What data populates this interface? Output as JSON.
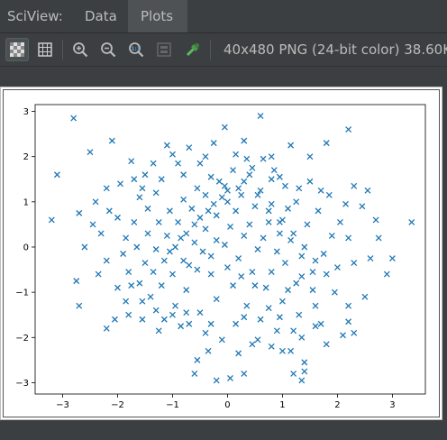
{
  "window": {
    "title": "SciView:",
    "tabs": [
      {
        "label": "Data",
        "active": false
      },
      {
        "label": "Plots",
        "active": true
      }
    ]
  },
  "toolbar": {
    "buttons": [
      {
        "icon": "checkerboard-icon",
        "active": true
      },
      {
        "icon": "grid-icon",
        "active": false
      },
      {
        "icon": "zoom-in-icon",
        "active": false
      },
      {
        "icon": "zoom-out-icon",
        "active": false
      },
      {
        "icon": "actual-size-icon",
        "active": false
      },
      {
        "icon": "fit-to-window-icon",
        "active": false
      },
      {
        "icon": "color-picker-icon",
        "active": false
      }
    ],
    "image_info": "40x480 PNG (24-bit color) 38.60K"
  },
  "colors": {
    "marker": "#1f77b4",
    "panel": "#3c3f41",
    "active_tab": "#4e5254"
  },
  "chart_data": {
    "type": "scatter",
    "marker": "x",
    "xlim": [
      -3.5,
      3.6
    ],
    "ylim": [
      -3.25,
      3.15
    ],
    "xticks": [
      "−3",
      "−2",
      "−1",
      "0",
      "1",
      "2",
      "3"
    ],
    "yticks": [
      "3",
      "2",
      "1",
      "0",
      "−1",
      "−2",
      "−3"
    ],
    "xtick_values": [
      -3,
      -2,
      -1,
      0,
      1,
      2,
      3
    ],
    "ytick_values": [
      3,
      2,
      1,
      0,
      -1,
      -2,
      -3
    ],
    "title": "",
    "xlabel": "",
    "ylabel": "",
    "points": [
      [
        -2.8,
        2.85
      ],
      [
        -3.1,
        1.6
      ],
      [
        -2.5,
        2.1
      ],
      [
        -2.1,
        2.35
      ],
      [
        -3.2,
        0.6
      ],
      [
        -2.6,
        0.0
      ],
      [
        -2.7,
        0.75
      ],
      [
        -2.75,
        -0.75
      ],
      [
        -2.7,
        -1.3
      ],
      [
        -2.2,
        1.3
      ],
      [
        -2.15,
        0.8
      ],
      [
        -2.3,
        0.3
      ],
      [
        -2.2,
        -0.3
      ],
      [
        -2.2,
        -1.8
      ],
      [
        -2.05,
        -1.6
      ],
      [
        -1.8,
        -1.5
      ],
      [
        -1.3,
        -1.4
      ],
      [
        -1.0,
        -1.5
      ],
      [
        -0.7,
        -1.7
      ],
      [
        -0.4,
        -1.9
      ],
      [
        -0.55,
        -2.5
      ],
      [
        -0.6,
        -2.8
      ],
      [
        -0.35,
        -2.3
      ],
      [
        -0.2,
        -2.95
      ],
      [
        0.05,
        -2.9
      ],
      [
        0.3,
        -2.8
      ],
      [
        0.2,
        -2.35
      ],
      [
        0.55,
        -2.05
      ],
      [
        0.8,
        -2.2
      ],
      [
        1.0,
        -2.3
      ],
      [
        1.15,
        -2.3
      ],
      [
        1.2,
        -1.85
      ],
      [
        1.35,
        -2.0
      ],
      [
        1.4,
        -2.55
      ],
      [
        1.4,
        -2.75
      ],
      [
        1.35,
        -2.95
      ],
      [
        1.2,
        -2.8
      ],
      [
        1.8,
        -2.15
      ],
      [
        1.7,
        -1.7
      ],
      [
        2.1,
        -1.95
      ],
      [
        2.3,
        -1.9
      ],
      [
        2.2,
        -1.65
      ],
      [
        2.5,
        -1.1
      ],
      [
        2.3,
        -0.35
      ],
      [
        2.6,
        -0.25
      ],
      [
        2.9,
        -0.6
      ],
      [
        3.0,
        -0.25
      ],
      [
        2.75,
        0.2
      ],
      [
        3.35,
        0.55
      ],
      [
        2.7,
        0.6
      ],
      [
        2.55,
        1.25
      ],
      [
        2.3,
        1.35
      ],
      [
        2.2,
        2.6
      ],
      [
        1.8,
        2.3
      ],
      [
        1.5,
        2.0
      ],
      [
        1.15,
        2.25
      ],
      [
        0.8,
        2.0
      ],
      [
        0.6,
        2.9
      ],
      [
        0.3,
        2.35
      ],
      [
        -0.05,
        2.65
      ],
      [
        -0.25,
        2.3
      ],
      [
        -0.7,
        2.2
      ],
      [
        -1.1,
        2.25
      ],
      [
        -1.0,
        2.05
      ],
      [
        -1.7,
        1.5
      ],
      [
        -1.75,
        1.9
      ],
      [
        -1.5,
        1.6
      ],
      [
        -1.3,
        1.2
      ],
      [
        -1.6,
        1.1
      ],
      [
        -1.45,
        0.85
      ],
      [
        -1.7,
        0.55
      ],
      [
        -1.85,
        0.2
      ],
      [
        -1.9,
        -0.15
      ],
      [
        -1.8,
        -0.55
      ],
      [
        -1.6,
        -0.8
      ],
      [
        -1.4,
        -1.1
      ],
      [
        -1.2,
        -0.85
      ],
      [
        -1.0,
        -0.6
      ],
      [
        -0.8,
        -0.3
      ],
      [
        -0.6,
        0.1
      ],
      [
        -0.4,
        0.4
      ],
      [
        -0.2,
        0.7
      ],
      [
        0.0,
        1.0
      ],
      [
        0.2,
        1.3
      ],
      [
        0.4,
        1.6
      ],
      [
        0.6,
        1.25
      ],
      [
        0.8,
        0.95
      ],
      [
        1.0,
        0.6
      ],
      [
        1.2,
        0.3
      ],
      [
        1.4,
        0.0
      ],
      [
        1.6,
        -0.3
      ],
      [
        1.8,
        -0.6
      ],
      [
        1.95,
        -1.0
      ],
      [
        1.6,
        -1.3
      ],
      [
        1.3,
        -1.5
      ],
      [
        1.0,
        -1.2
      ],
      [
        0.7,
        -0.9
      ],
      [
        0.45,
        -0.55
      ],
      [
        0.2,
        -0.25
      ],
      [
        -0.05,
        0.05
      ],
      [
        -0.3,
        -0.2
      ],
      [
        -0.55,
        -0.5
      ],
      [
        -0.75,
        -0.95
      ],
      [
        -0.95,
        -1.3
      ],
      [
        -1.15,
        -1.6
      ],
      [
        -0.85,
        -1.75
      ],
      [
        -0.5,
        -1.45
      ],
      [
        -0.2,
        -1.15
      ],
      [
        0.1,
        -0.85
      ],
      [
        0.35,
        -1.3
      ],
      [
        0.6,
        -1.6
      ],
      [
        0.9,
        -1.85
      ],
      [
        0.15,
        -1.7
      ],
      [
        -0.1,
        -2.05
      ],
      [
        0.45,
        -2.15
      ],
      [
        0.75,
        -1.35
      ],
      [
        1.1,
        -0.95
      ],
      [
        1.35,
        -0.65
      ],
      [
        1.55,
        -0.95
      ],
      [
        1.75,
        -0.15
      ],
      [
        1.9,
        0.25
      ],
      [
        2.05,
        0.55
      ],
      [
        2.15,
        0.95
      ],
      [
        1.85,
        1.15
      ],
      [
        1.65,
        0.8
      ],
      [
        1.45,
        0.5
      ],
      [
        1.25,
        1.0
      ],
      [
        1.05,
        1.35
      ],
      [
        0.85,
        1.7
      ],
      [
        0.65,
        1.95
      ],
      [
        0.35,
        1.95
      ],
      [
        0.1,
        1.7
      ],
      [
        -0.15,
        1.45
      ],
      [
        -0.4,
        1.15
      ],
      [
        -0.65,
        0.85
      ],
      [
        -0.9,
        0.55
      ],
      [
        -1.1,
        0.25
      ],
      [
        -1.3,
        -0.05
      ],
      [
        -1.5,
        -0.35
      ],
      [
        -1.05,
        -0.1
      ],
      [
        -0.85,
        0.2
      ],
      [
        -0.6,
        0.5
      ],
      [
        -0.35,
        0.8
      ],
      [
        -0.1,
        1.1
      ],
      [
        0.15,
        0.8
      ],
      [
        0.4,
        0.5
      ],
      [
        0.65,
        0.2
      ],
      [
        0.9,
        -0.1
      ],
      [
        0.55,
        -0.05
      ],
      [
        0.3,
        0.25
      ],
      [
        0.05,
        0.45
      ],
      [
        -0.2,
        0.15
      ],
      [
        -0.45,
        -0.1
      ],
      [
        -0.7,
        -0.4
      ],
      [
        -0.3,
        -0.6
      ],
      [
        0.0,
        -0.45
      ],
      [
        0.25,
        -0.65
      ],
      [
        0.5,
        -0.85
      ],
      [
        0.8,
        -0.55
      ],
      [
        1.05,
        -0.35
      ],
      [
        1.25,
        -0.8
      ],
      [
        0.95,
        0.3
      ],
      [
        0.75,
        0.55
      ],
      [
        0.5,
        0.9
      ],
      [
        0.25,
        1.15
      ],
      [
        -0.05,
        1.35
      ],
      [
        -0.3,
        1.55
      ],
      [
        -0.55,
        1.3
      ],
      [
        -0.8,
        1.05
      ],
      [
        -1.05,
        0.8
      ],
      [
        -1.25,
        0.55
      ],
      [
        -1.45,
        0.3
      ],
      [
        -1.65,
        0.0
      ],
      [
        -1.35,
        -0.55
      ],
      [
        -1.15,
        -0.3
      ],
      [
        -0.95,
        0.0
      ],
      [
        -0.75,
        0.3
      ],
      [
        -0.5,
        0.65
      ],
      [
        -0.25,
        0.95
      ],
      [
        0.0,
        1.25
      ],
      [
        0.3,
        1.45
      ],
      [
        0.55,
        1.15
      ],
      [
        0.75,
        0.8
      ],
      [
        0.95,
        0.55
      ],
      [
        1.15,
        0.15
      ],
      [
        1.35,
        -0.2
      ],
      [
        1.55,
        -0.55
      ],
      [
        1.1,
        0.85
      ],
      [
        1.3,
        1.3
      ],
      [
        1.5,
        1.45
      ],
      [
        1.7,
        1.25
      ],
      [
        0.95,
        1.55
      ],
      [
        0.45,
        1.75
      ],
      [
        -0.5,
        1.85
      ],
      [
        -0.8,
        1.6
      ],
      [
        -1.2,
        1.5
      ],
      [
        -1.35,
        1.85
      ],
      [
        -0.9,
        1.85
      ],
      [
        -0.4,
        2.0
      ],
      [
        0.15,
        2.05
      ],
      [
        0.8,
        1.5
      ],
      [
        -2.35,
        -0.6
      ],
      [
        -2.0,
        -0.9
      ],
      [
        -1.85,
        -1.2
      ],
      [
        -1.55,
        -1.6
      ],
      [
        -1.25,
        -1.85
      ],
      [
        -2.45,
        0.5
      ],
      [
        -2.0,
        0.65
      ],
      [
        -2.4,
        1.0
      ],
      [
        -1.95,
        1.4
      ],
      [
        -1.55,
        1.3
      ],
      [
        2.45,
        0.9
      ],
      [
        2.2,
        0.2
      ],
      [
        2.0,
        -0.45
      ],
      [
        2.2,
        -1.3
      ],
      [
        1.6,
        -1.75
      ],
      [
        0.95,
        -1.55
      ],
      [
        0.3,
        -1.55
      ],
      [
        -0.3,
        -1.7
      ],
      [
        -0.75,
        -1.45
      ],
      [
        -1.55,
        -1.2
      ],
      [
        -1.75,
        -0.85
      ]
    ]
  }
}
